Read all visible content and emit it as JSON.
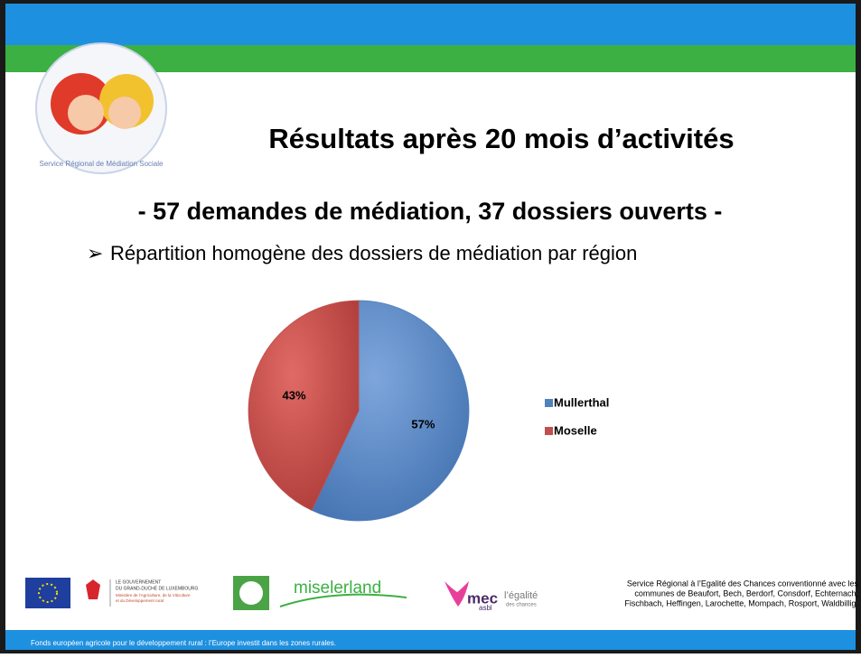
{
  "title": "Résultats après 20 mois d’activités",
  "subtitle": "- 57 demandes de médiation, 37 dossiers ouverts -",
  "bullet": "Répartition homogène des dossiers de médiation par région",
  "logo_text": "Service Régional de Médiation Sociale",
  "sponsors": {
    "gov": [
      "LE GOUVERNEMENT",
      "DU GRAND-DUCHÉ DE LUXEMBOURG",
      "Ministère de l’Agriculture, de la Viticulture",
      "et du Développement rural"
    ],
    "miselerland": "miselerland",
    "mec": "mec",
    "mec_sub": "asbl",
    "egalite": "l’égalité",
    "egalite_sub": "des chances"
  },
  "footer_note": [
    "Service Régional à l’Egalité des Chances conventionné avec les",
    "communes de Beaufort, Bech, Berdorf, Consdorf, Echternach,",
    "Fischbach, Heffingen, Larochette, Mompach, Rosport, Waldbillig."
  ],
  "footer": "Fonds européen agricole pour le développement rural : l’Europe investit dans les zones rurales.",
  "chart_data": {
    "type": "pie",
    "categories": [
      "Mullerthal",
      "Moselle"
    ],
    "values": [
      57,
      43
    ],
    "value_labels": [
      "57%",
      "43%"
    ],
    "colors": [
      "#4f81bd",
      "#c0504d"
    ],
    "legend": "right"
  }
}
